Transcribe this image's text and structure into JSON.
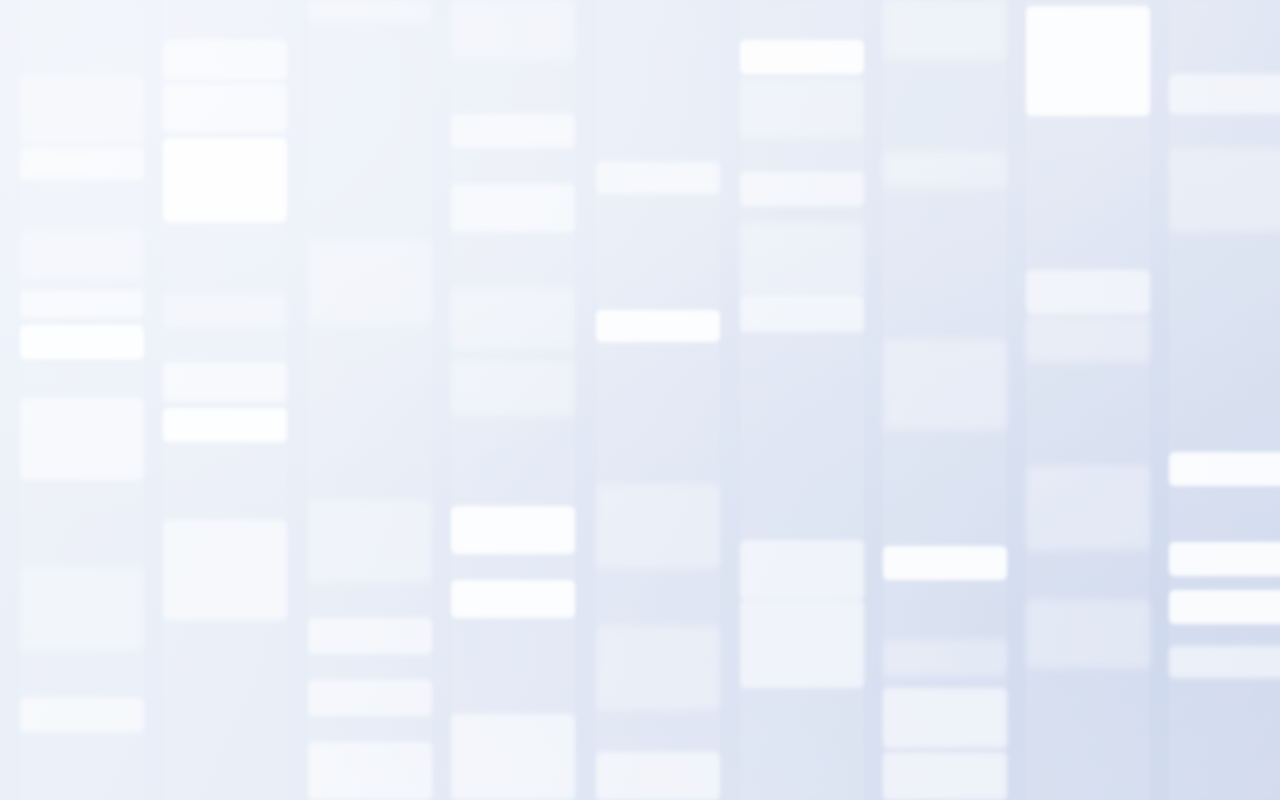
{
  "wallpaper": {
    "description_name": "dna-sequencing-gel-wallpaper",
    "colors": {
      "background_light": "#eef2f9",
      "background_dark": "#d3dcee",
      "band": "#ffffff"
    }
  }
}
